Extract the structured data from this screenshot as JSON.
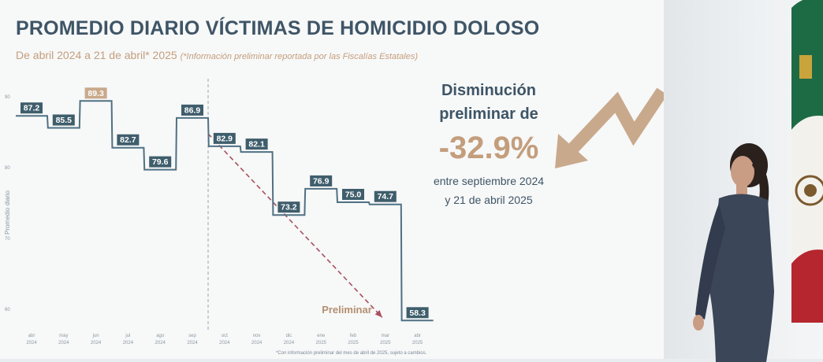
{
  "header": {
    "title": "PROMEDIO DIARIO VÍCTIMAS DE HOMICIDIO DOLOSO",
    "subtitle": "De abril 2024 a 21 de abril* 2025",
    "subtitle_note": "(*Información preliminar reportada por las Fiscalías Estatales)"
  },
  "callout": {
    "line1": "Disminución",
    "line2": "preliminar de",
    "percent": "-32.9%",
    "line3": "entre septiembre 2024",
    "line4": "y 21 de abril 2025"
  },
  "footnote": "*Con información preliminar del mes de abril de 2025, sujeto a cambios.",
  "colors": {
    "title": "#3e5566",
    "accent": "#c39e7d",
    "line": "#4f7183",
    "label_bg": "#3f5e6c",
    "highlight_bg": "#c9a98c",
    "trend": "#a8505f"
  },
  "chart_data": {
    "type": "line",
    "step": true,
    "ylabel": "Promedio diario",
    "ylim": [
      60,
      90
    ],
    "yticks": [
      "90",
      "80",
      "70",
      "60"
    ],
    "categories": [
      {
        "month": "abr",
        "year": "2024"
      },
      {
        "month": "may",
        "year": "2024"
      },
      {
        "month": "jun",
        "year": "2024"
      },
      {
        "month": "jul",
        "year": "2024"
      },
      {
        "month": "ago",
        "year": "2024"
      },
      {
        "month": "sep",
        "year": "2024"
      },
      {
        "month": "oct",
        "year": "2024"
      },
      {
        "month": "nov",
        "year": "2024"
      },
      {
        "month": "dic",
        "year": "2024"
      },
      {
        "month": "ene",
        "year": "2025"
      },
      {
        "month": "feb",
        "year": "2025"
      },
      {
        "month": "mar",
        "year": "2025"
      },
      {
        "month": "abr",
        "year": "2025"
      }
    ],
    "values": [
      87.2,
      85.5,
      89.3,
      82.7,
      79.6,
      86.9,
      82.9,
      82.1,
      73.2,
      76.9,
      75.0,
      74.7,
      58.3
    ],
    "value_labels": [
      "87.2",
      "85.5",
      "89.3",
      "82.7",
      "79.6",
      "86.9",
      "82.9",
      "82.1",
      "73.2",
      "76.9",
      "75.0",
      "74.7",
      "58.3"
    ],
    "highlight_index": 2,
    "reference_line_index": 5,
    "trend_annotation": "Preliminar",
    "grid": false,
    "legend": "none"
  }
}
